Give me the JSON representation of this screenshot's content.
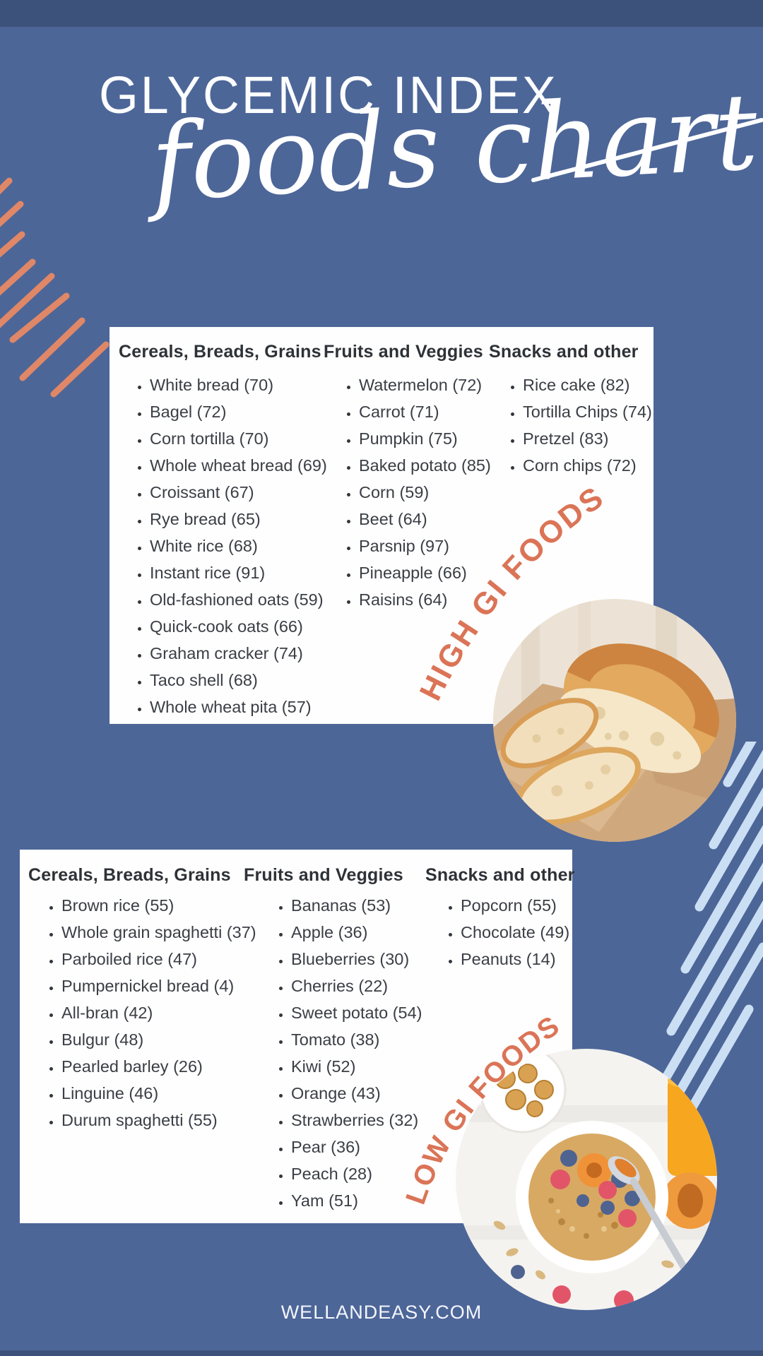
{
  "page": {
    "title": "GLYCEMIC INDEX",
    "subtitle": "foods chart",
    "footer": "WELLANDEASY.COM"
  },
  "colors": {
    "background": "#4D6698",
    "top_band": "#3C527A",
    "card": "#FEFEFE",
    "accent_orange_text": "#DB7457",
    "accent_orange_stripes": "#E08767",
    "pale_blue_stripes": "#CBDFF4",
    "list_text": "#3A3E45"
  },
  "high_gi": {
    "label": "HIGH GI FOODS",
    "columns": [
      {
        "header": "Cereals, Breads, Grains",
        "items": [
          "White bread (70)",
          "Bagel (72)",
          "Corn tortilla (70)",
          "Whole wheat bread (69)",
          "Croissant (67)",
          "Rye bread (65)",
          "White rice (68)",
          "Instant rice (91)",
          "Old-fashioned oats (59)",
          "Quick-cook oats (66)",
          "Graham cracker (74)",
          "Taco shell (68)",
          "Whole wheat pita (57)"
        ]
      },
      {
        "header": "Fruits and Veggies",
        "items": [
          "Watermelon (72)",
          "Carrot (71)",
          "Pumpkin (75)",
          "Baked potato (85)",
          "Corn (59)",
          "Beet (64)",
          "Parsnip (97)",
          "Pineapple (66)",
          "Raisins (64)"
        ]
      },
      {
        "header": "Snacks and other",
        "items": [
          "Rice cake (82)",
          "Tortilla Chips (74)",
          "Pretzel (83)",
          "Corn chips (72)"
        ]
      }
    ]
  },
  "low_gi": {
    "label": "LOW GI FOODS",
    "columns": [
      {
        "header": "Cereals, Breads, Grains",
        "items": [
          "Brown rice (55)",
          "Whole grain spaghetti (37)",
          "Parboiled rice (47)",
          "Pumpernickel bread (4)",
          "All-bran (42)",
          "Bulgur (48)",
          "Pearled barley (26)",
          "Linguine (46)",
          "Durum spaghetti (55)"
        ]
      },
      {
        "header": "Fruits and Veggies",
        "items": [
          "Bananas (53)",
          "Apple (36)",
          "Blueberries (30)",
          "Cherries (22)",
          "Sweet potato (54)",
          "Tomato (38)",
          "Kiwi (52)",
          "Orange (43)",
          "Strawberries (32)",
          "Pear (36)",
          "Peach (28)",
          "Yam (51)"
        ]
      },
      {
        "header": "Snacks and other",
        "items": [
          "Popcorn (55)",
          "Chocolate (49)",
          "Peanuts (14)"
        ]
      }
    ]
  }
}
